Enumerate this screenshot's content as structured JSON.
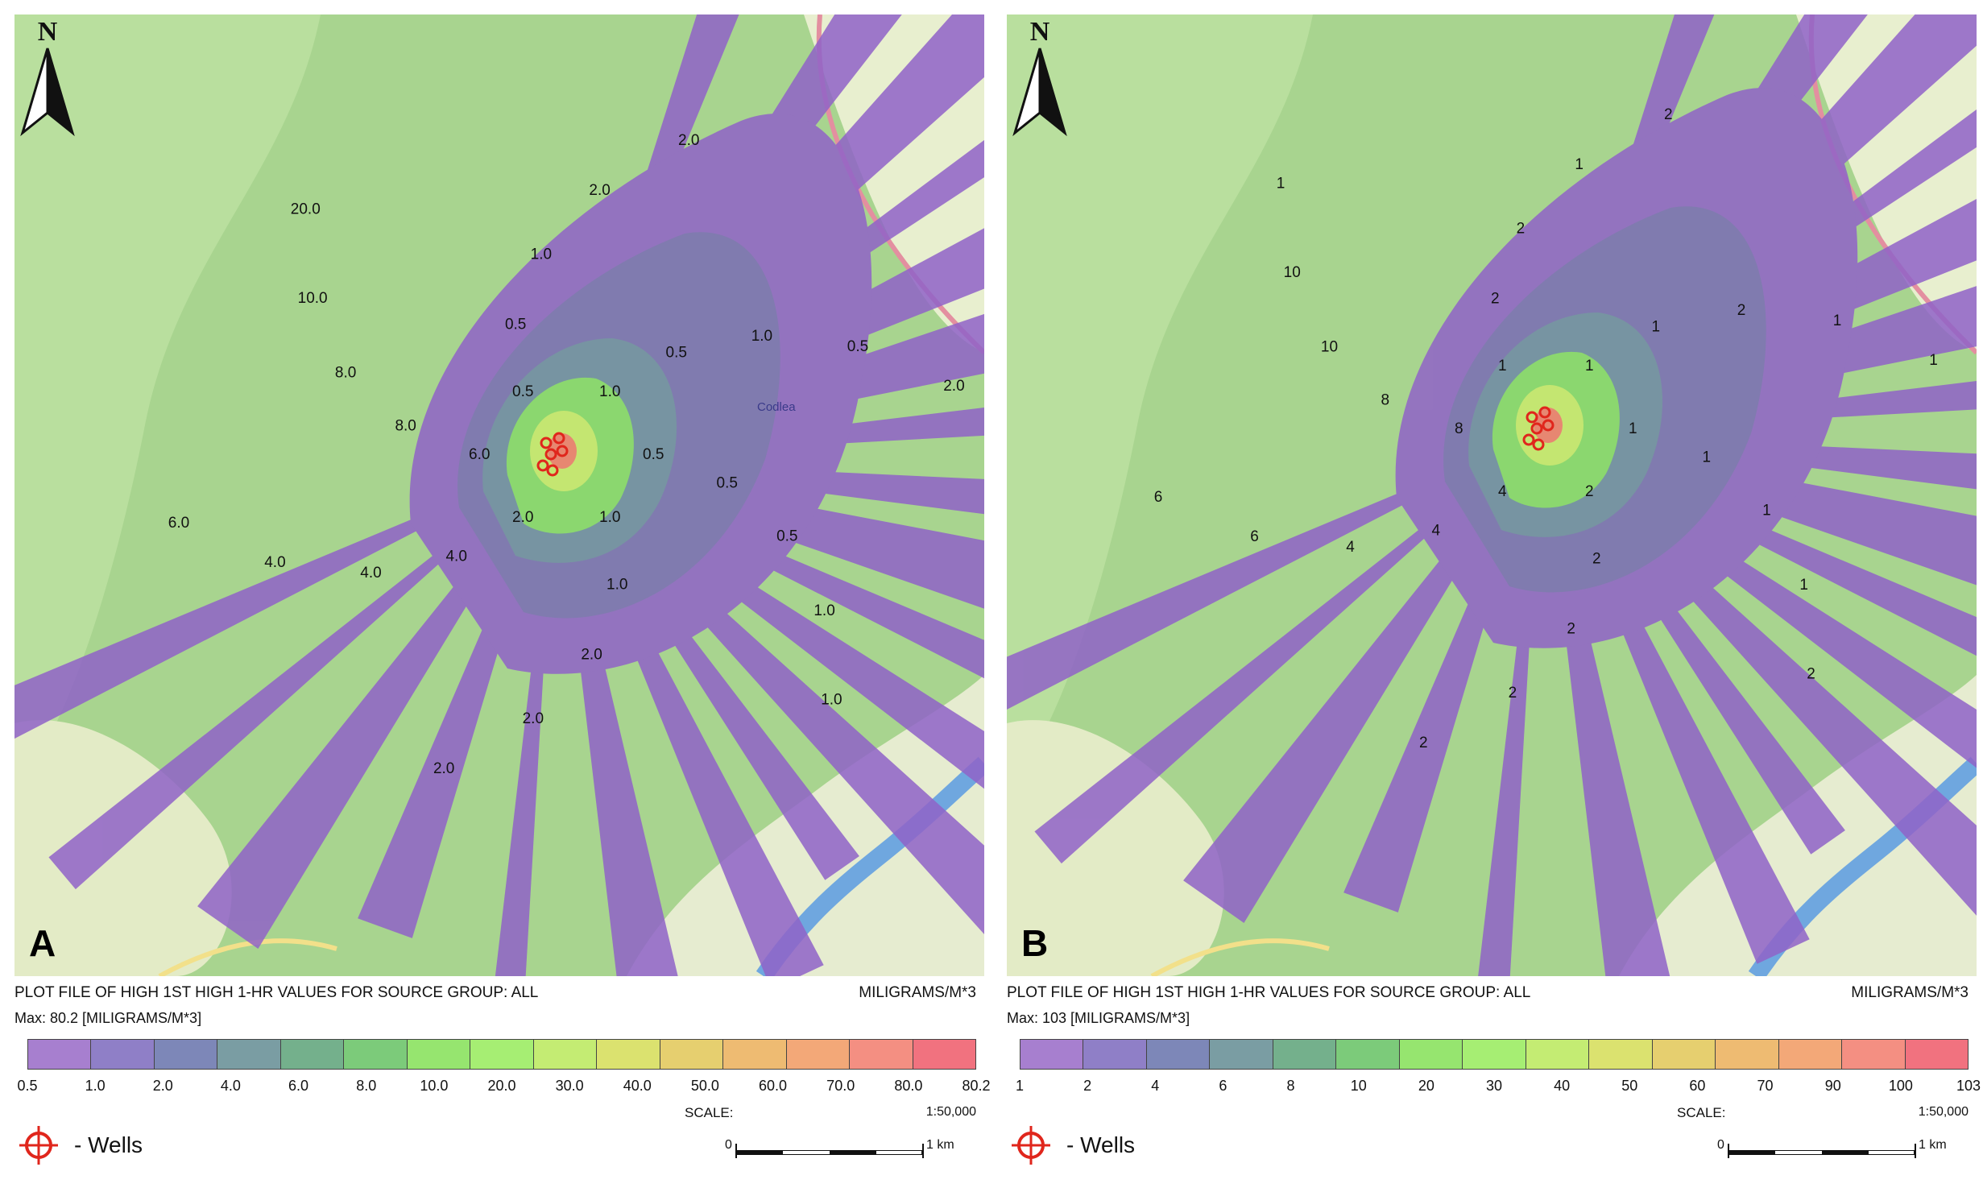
{
  "panels": [
    {
      "letter": "A",
      "north_label": "N",
      "legend": {
        "title": "PLOT FILE OF HIGH 1ST HIGH 1-HR VALUES FOR SOURCE GROUP: ALL",
        "units": "MILIGRAMS/M*3",
        "max": "Max:  80.2  [MILIGRAMS/M*3]",
        "ticks": [
          "0.5",
          "1.0",
          "2.0",
          "4.0",
          "6.0",
          "8.0",
          "10.0",
          "20.0",
          "30.0",
          "40.0",
          "50.0",
          "60.0",
          "70.0",
          "80.0",
          "80.2"
        ],
        "scale_label": "SCALE:",
        "scale_value": "1:50,000",
        "scale_start": "0",
        "scale_end": "1 km",
        "wells_label": "- Wells"
      },
      "contour_labels": [
        "0.5",
        "0.5",
        "0.5",
        "1.0",
        "1.0",
        "1.0",
        "1.0",
        "2.0",
        "2.0",
        "2.0",
        "2.0",
        "4.0",
        "4.0",
        "4.0",
        "6.0",
        "6.0",
        "8.0",
        "8.0",
        "10.0",
        "20.0",
        "0.5",
        "0.5",
        "1.0",
        "2.0",
        "2.0",
        "1.0",
        "0.5",
        "1.0",
        "0.5",
        "2.0"
      ],
      "place_label": "Codlea"
    },
    {
      "letter": "B",
      "north_label": "N",
      "legend": {
        "title": "PLOT FILE OF HIGH 1ST HIGH 1-HR VALUES FOR SOURCE GROUP: ALL",
        "units": "MILIGRAMS/M*3",
        "max": "Max:  103  [MILIGRAMS/M*3]",
        "ticks": [
          "1",
          "2",
          "4",
          "6",
          "8",
          "10",
          "20",
          "30",
          "40",
          "50",
          "60",
          "70",
          "90",
          "100",
          "103"
        ],
        "scale_label": "SCALE:",
        "scale_value": "1:50,000",
        "scale_start": "0",
        "scale_end": "1 km",
        "wells_label": "- Wells"
      },
      "contour_labels": [
        "1",
        "1",
        "1",
        "1",
        "2",
        "2",
        "2",
        "2",
        "2",
        "2",
        "4",
        "4",
        "4",
        "6",
        "6",
        "8",
        "8",
        "10",
        "10",
        "1",
        "1",
        "2",
        "2",
        "1",
        "2",
        "1",
        "1",
        "2",
        "1",
        "1"
      ],
      "place_label": ""
    }
  ],
  "colors": {
    "scale": [
      "#a77fcf",
      "#8f7fc7",
      "#7d87b8",
      "#7a9da3",
      "#74b08c",
      "#7ccb7a",
      "#96e56f",
      "#a6ee73",
      "#c4ec73",
      "#dbe26f",
      "#e6cf6f",
      "#eebb72",
      "#f3a878",
      "#f48f82",
      "#f1727f"
    ],
    "plume_outer": "#9063c8",
    "plume_mid": "#7a6cb5",
    "plume_inner": "#6f8aa6",
    "core_green": "#86d86a",
    "core_yellow": "#c9ea6c",
    "hotspot": "#f27a6c",
    "well": "#e0261c"
  }
}
